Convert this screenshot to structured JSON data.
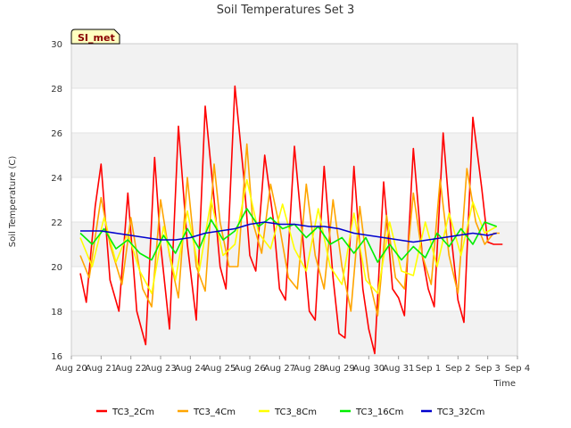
{
  "chart_data": {
    "type": "line",
    "title": "Soil Temperatures Set 3",
    "xlabel": "Time",
    "ylabel": "Soil Temperature (C)",
    "site_label": "SI_met",
    "ylim": [
      16,
      30
    ],
    "yticks": [
      16,
      18,
      20,
      22,
      24,
      26,
      28,
      30
    ],
    "xlim": [
      0,
      15
    ],
    "xticks": [
      {
        "x": 0,
        "label": "Aug 20"
      },
      {
        "x": 1,
        "label": "Aug 21"
      },
      {
        "x": 2,
        "label": "Aug 22"
      },
      {
        "x": 3,
        "label": "Aug 23"
      },
      {
        "x": 4,
        "label": "Aug 24"
      },
      {
        "x": 5,
        "label": "Aug 25"
      },
      {
        "x": 6,
        "label": "Aug 26"
      },
      {
        "x": 7,
        "label": "Aug 27"
      },
      {
        "x": 8,
        "label": "Aug 28"
      },
      {
        "x": 9,
        "label": "Aug 29"
      },
      {
        "x": 10,
        "label": "Aug 30"
      },
      {
        "x": 11,
        "label": "Aug 31"
      },
      {
        "x": 12,
        "label": "Sep 1"
      },
      {
        "x": 13,
        "label": "Sep 2"
      },
      {
        "x": 14,
        "label": "Sep 3"
      },
      {
        "x": 15,
        "label": "Sep 4"
      }
    ],
    "bands": [
      [
        16,
        18
      ],
      [
        20,
        22
      ],
      [
        24,
        26
      ],
      [
        28,
        30
      ]
    ],
    "band_color": "#f2f2f2",
    "series": [
      {
        "name": "TC3_2Cm",
        "color": "#ff0000",
        "x": [
          0.3,
          0.5,
          0.8,
          1.0,
          1.3,
          1.6,
          1.9,
          2.2,
          2.5,
          2.8,
          3.0,
          3.3,
          3.6,
          3.9,
          4.2,
          4.5,
          4.8,
          5.0,
          5.2,
          5.5,
          5.8,
          6.0,
          6.2,
          6.5,
          6.8,
          7.0,
          7.2,
          7.5,
          7.8,
          8.0,
          8.2,
          8.5,
          8.8,
          9.0,
          9.2,
          9.5,
          9.8,
          10.0,
          10.2,
          10.5,
          10.8,
          11.0,
          11.2,
          11.5,
          11.8,
          12.0,
          12.2,
          12.5,
          12.8,
          13.0,
          13.2,
          13.5,
          13.8,
          14.0,
          14.2,
          14.5
        ],
        "y": [
          19.7,
          18.4,
          22.7,
          24.6,
          19.4,
          18.0,
          23.3,
          18.0,
          16.5,
          24.9,
          21.0,
          17.2,
          26.3,
          21.0,
          17.6,
          27.2,
          23.0,
          20.0,
          19.0,
          28.1,
          24.0,
          20.5,
          19.8,
          25.0,
          22.0,
          19.0,
          18.5,
          25.4,
          21.0,
          18.0,
          17.6,
          24.5,
          19.5,
          17.0,
          16.8,
          24.5,
          19.0,
          17.2,
          16.1,
          23.8,
          19.0,
          18.6,
          17.8,
          25.3,
          20.5,
          19.0,
          18.2,
          26.0,
          21.0,
          18.5,
          17.5,
          26.7,
          23.5,
          21.1,
          21.0,
          21.0
        ]
      },
      {
        "name": "TC3_4Cm",
        "color": "#ffa500",
        "x": [
          0.3,
          0.6,
          1.0,
          1.3,
          1.7,
          2.0,
          2.4,
          2.7,
          3.0,
          3.3,
          3.6,
          3.9,
          4.2,
          4.5,
          4.8,
          5.0,
          5.3,
          5.6,
          5.9,
          6.1,
          6.4,
          6.7,
          7.0,
          7.3,
          7.6,
          7.9,
          8.2,
          8.5,
          8.8,
          9.1,
          9.4,
          9.7,
          10.0,
          10.3,
          10.6,
          10.9,
          11.2,
          11.5,
          11.8,
          12.1,
          12.4,
          12.7,
          13.0,
          13.3,
          13.6,
          13.9,
          14.2,
          14.4
        ],
        "y": [
          20.5,
          19.5,
          23.1,
          21.0,
          19.2,
          22.2,
          19.0,
          18.2,
          23.0,
          20.5,
          18.6,
          24.0,
          20.0,
          18.9,
          24.6,
          22.0,
          20.0,
          20.0,
          25.5,
          22.0,
          20.6,
          23.7,
          21.8,
          19.5,
          19.0,
          23.7,
          20.5,
          19.0,
          23.0,
          20.0,
          18.0,
          22.7,
          19.5,
          17.8,
          22.3,
          19.5,
          19.0,
          23.3,
          20.5,
          19.2,
          23.9,
          20.5,
          18.8,
          24.4,
          22.0,
          21.0,
          21.5,
          21.5
        ]
      },
      {
        "name": "TC3_8Cm",
        "color": "#ffff00",
        "x": [
          0.3,
          0.7,
          1.1,
          1.5,
          1.9,
          2.3,
          2.7,
          3.1,
          3.5,
          3.9,
          4.3,
          4.7,
          5.1,
          5.5,
          5.9,
          6.3,
          6.7,
          7.1,
          7.5,
          7.9,
          8.3,
          8.7,
          9.1,
          9.5,
          9.9,
          10.3,
          10.7,
          11.1,
          11.5,
          11.9,
          12.3,
          12.7,
          13.1,
          13.5,
          13.9,
          14.3
        ],
        "y": [
          21.3,
          20.0,
          22.2,
          20.2,
          21.5,
          19.8,
          18.8,
          21.8,
          19.4,
          22.5,
          19.8,
          23.0,
          20.5,
          21.0,
          23.9,
          21.5,
          20.8,
          22.8,
          20.8,
          19.8,
          22.6,
          20.0,
          19.2,
          22.4,
          19.4,
          18.8,
          22.0,
          19.8,
          19.6,
          22.0,
          20.0,
          22.4,
          20.5,
          22.9,
          21.5,
          21.8
        ]
      },
      {
        "name": "TC3_16Cm",
        "color": "#00ee00",
        "x": [
          0.3,
          0.7,
          1.1,
          1.5,
          1.9,
          2.3,
          2.7,
          3.1,
          3.5,
          3.9,
          4.3,
          4.7,
          5.1,
          5.5,
          5.9,
          6.3,
          6.7,
          7.1,
          7.5,
          7.9,
          8.3,
          8.7,
          9.1,
          9.5,
          9.9,
          10.3,
          10.7,
          11.1,
          11.5,
          11.9,
          12.3,
          12.7,
          13.1,
          13.5,
          13.9,
          14.3
        ],
        "y": [
          21.5,
          21.0,
          21.7,
          20.8,
          21.2,
          20.6,
          20.3,
          21.4,
          20.6,
          21.7,
          20.8,
          22.1,
          21.2,
          21.6,
          22.6,
          21.8,
          22.2,
          21.7,
          21.9,
          21.3,
          21.8,
          21.0,
          21.3,
          20.6,
          21.3,
          20.2,
          21.0,
          20.3,
          20.9,
          20.4,
          21.5,
          20.9,
          21.7,
          21.0,
          22.0,
          21.8
        ]
      },
      {
        "name": "TC3_32Cm",
        "color": "#0000cd",
        "x": [
          0.3,
          1.0,
          1.5,
          2.0,
          2.5,
          3.0,
          3.5,
          4.0,
          4.5,
          5.0,
          5.5,
          6.0,
          6.5,
          7.0,
          7.5,
          8.0,
          8.5,
          9.0,
          9.5,
          10.0,
          10.5,
          11.0,
          11.5,
          12.0,
          12.5,
          13.0,
          13.5,
          14.0,
          14.3
        ],
        "y": [
          21.6,
          21.6,
          21.5,
          21.4,
          21.3,
          21.2,
          21.2,
          21.3,
          21.5,
          21.6,
          21.7,
          21.9,
          22.0,
          21.9,
          21.9,
          21.8,
          21.8,
          21.7,
          21.5,
          21.4,
          21.3,
          21.2,
          21.1,
          21.2,
          21.3,
          21.4,
          21.5,
          21.4,
          21.5
        ]
      }
    ]
  }
}
